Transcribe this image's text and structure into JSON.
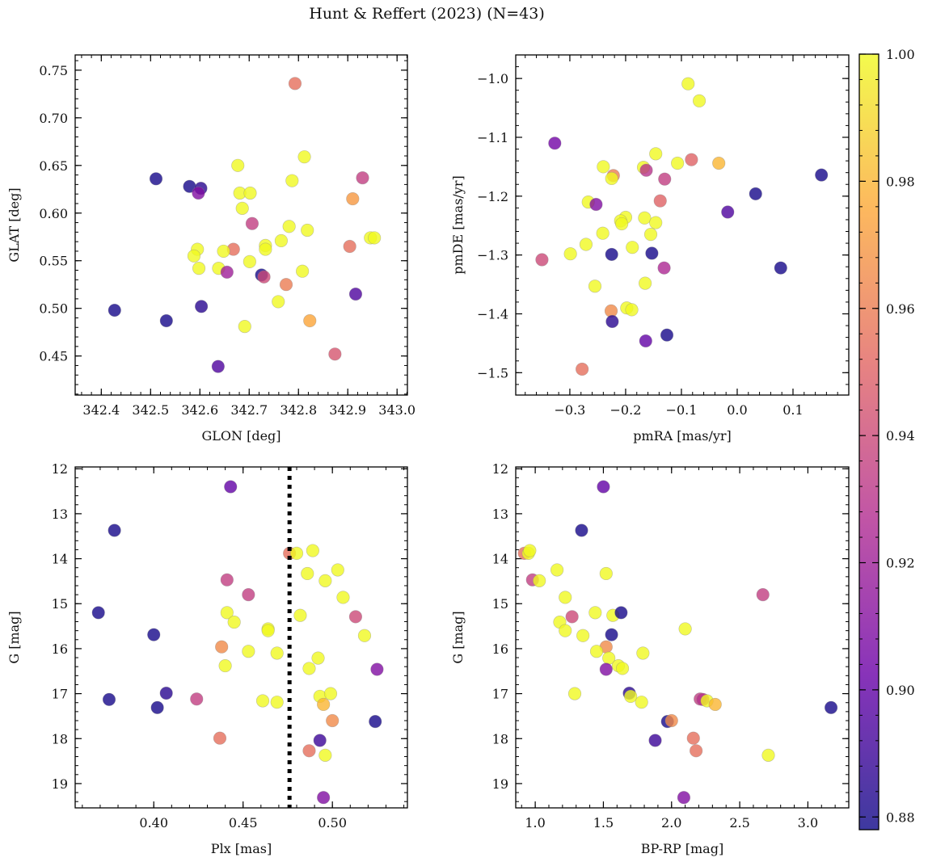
{
  "title": "Hunt & Reffert (2023) (N=43)",
  "chart_data": [
    {
      "type": "scatter",
      "xlabel": "GLON [deg]",
      "ylabel": "GLAT [deg]",
      "xlim": [
        342.347,
        343.021
      ],
      "ylim": [
        0.409,
        0.766
      ],
      "xticks": [
        342.4,
        342.5,
        342.6,
        342.7,
        342.8,
        342.9,
        343.0
      ],
      "xminor": 0.02,
      "xticklabels": [
        "342.4",
        "342.5",
        "342.6",
        "342.7",
        "342.8",
        "342.9",
        "343.0"
      ],
      "yticks": [
        0.45,
        0.5,
        0.55,
        0.6,
        0.65,
        0.7,
        0.75
      ],
      "yminor": 0.01,
      "yticklabels": [
        "0.45",
        "0.50",
        "0.55",
        "0.60",
        "0.65",
        "0.70",
        "0.75"
      ],
      "points": [
        [
          342.793,
          0.736,
          0.955
        ],
        [
          342.812,
          0.659,
          1.0
        ],
        [
          342.677,
          0.65,
          1.0
        ],
        [
          342.511,
          0.636,
          0.88
        ],
        [
          342.787,
          0.634,
          1.0
        ],
        [
          342.93,
          0.637,
          0.935
        ],
        [
          342.579,
          0.628,
          0.88
        ],
        [
          342.602,
          0.626,
          0.885
        ],
        [
          342.597,
          0.621,
          0.91
        ],
        [
          342.681,
          0.621,
          1.0
        ],
        [
          342.702,
          0.621,
          1.0
        ],
        [
          342.91,
          0.615,
          0.97
        ],
        [
          342.686,
          0.605,
          1.0
        ],
        [
          342.706,
          0.589,
          0.935
        ],
        [
          342.781,
          0.586,
          1.0
        ],
        [
          342.818,
          0.582,
          1.0
        ],
        [
          342.946,
          0.574,
          1.0
        ],
        [
          342.954,
          0.574,
          1.0
        ],
        [
          342.765,
          0.571,
          1.0
        ],
        [
          342.733,
          0.566,
          1.0
        ],
        [
          342.733,
          0.562,
          1.0
        ],
        [
          342.904,
          0.565,
          0.955
        ],
        [
          342.668,
          0.562,
          0.955
        ],
        [
          342.595,
          0.562,
          1.0
        ],
        [
          342.648,
          0.56,
          1.0
        ],
        [
          342.588,
          0.555,
          1.0
        ],
        [
          342.701,
          0.549,
          1.0
        ],
        [
          342.598,
          0.542,
          1.0
        ],
        [
          342.638,
          0.542,
          1.0
        ],
        [
          342.655,
          0.538,
          0.92
        ],
        [
          342.808,
          0.539,
          1.0
        ],
        [
          342.725,
          0.535,
          0.88
        ],
        [
          342.73,
          0.533,
          0.94
        ],
        [
          342.775,
          0.525,
          0.96
        ],
        [
          342.916,
          0.515,
          0.895
        ],
        [
          342.759,
          0.507,
          1.0
        ],
        [
          342.603,
          0.502,
          0.885
        ],
        [
          342.427,
          0.498,
          0.88
        ],
        [
          342.532,
          0.487,
          0.88
        ],
        [
          342.823,
          0.487,
          0.975
        ],
        [
          342.691,
          0.481,
          1.0
        ],
        [
          342.874,
          0.452,
          0.945
        ],
        [
          342.637,
          0.439,
          0.895
        ]
      ]
    },
    {
      "type": "scatter",
      "xlabel": "pmRA [mas/yr]",
      "ylabel": "pmDE [mas/yr]",
      "xlim": [
        -0.397,
        0.2
      ],
      "ylim": [
        -1.538,
        -0.96
      ],
      "xticks": [
        -0.3,
        -0.2,
        -0.1,
        0.0,
        0.1
      ],
      "xminor": 0.02,
      "xticklabels": [
        "−0.3",
        "−0.2",
        "−0.1",
        "0.0",
        "0.1"
      ],
      "yticks": [
        -1.5,
        -1.4,
        -1.3,
        -1.2,
        -1.1,
        -1.0
      ],
      "yminor": 0.02,
      "yticklabels": [
        "−1.5",
        "−1.4",
        "−1.3",
        "−1.2",
        "−1.1",
        "−1.0"
      ],
      "points": [
        [
          -0.088,
          -1.009,
          1.0
        ],
        [
          -0.068,
          -1.038,
          1.0
        ],
        [
          -0.327,
          -1.11,
          0.905
        ],
        [
          -0.146,
          -1.128,
          1.0
        ],
        [
          -0.082,
          -1.138,
          0.95
        ],
        [
          -0.033,
          -1.144,
          0.98
        ],
        [
          -0.107,
          -1.144,
          1.0
        ],
        [
          -0.24,
          -1.15,
          1.0
        ],
        [
          -0.168,
          -1.151,
          1.0
        ],
        [
          -0.163,
          -1.156,
          0.93
        ],
        [
          -0.222,
          -1.165,
          0.96
        ],
        [
          -0.225,
          -1.17,
          1.0
        ],
        [
          0.151,
          -1.164,
          0.88
        ],
        [
          -0.13,
          -1.171,
          0.935
        ],
        [
          0.033,
          -1.196,
          0.88
        ],
        [
          -0.138,
          -1.208,
          0.95
        ],
        [
          -0.267,
          -1.21,
          1.0
        ],
        [
          -0.253,
          -1.214,
          0.91
        ],
        [
          -0.017,
          -1.227,
          0.895
        ],
        [
          -0.2,
          -1.236,
          1.0
        ],
        [
          -0.166,
          -1.237,
          1.0
        ],
        [
          -0.209,
          -1.242,
          1.0
        ],
        [
          -0.146,
          -1.245,
          1.0
        ],
        [
          -0.207,
          -1.247,
          1.0
        ],
        [
          -0.241,
          -1.263,
          1.0
        ],
        [
          -0.155,
          -1.265,
          1.0
        ],
        [
          -0.271,
          -1.282,
          1.0
        ],
        [
          -0.188,
          -1.287,
          1.0
        ],
        [
          -0.299,
          -1.298,
          1.0
        ],
        [
          -0.225,
          -1.299,
          0.88
        ],
        [
          -0.153,
          -1.297,
          0.88
        ],
        [
          -0.35,
          -1.308,
          0.94
        ],
        [
          0.078,
          -1.322,
          0.88
        ],
        [
          -0.131,
          -1.322,
          0.925
        ],
        [
          -0.255,
          -1.353,
          1.0
        ],
        [
          -0.165,
          -1.348,
          1.0
        ],
        [
          -0.198,
          -1.39,
          1.0
        ],
        [
          -0.189,
          -1.393,
          1.0
        ],
        [
          -0.226,
          -1.395,
          0.965
        ],
        [
          -0.224,
          -1.413,
          0.885
        ],
        [
          -0.126,
          -1.436,
          0.88
        ],
        [
          -0.164,
          -1.446,
          0.9
        ],
        [
          -0.278,
          -1.494,
          0.955
        ]
      ]
    },
    {
      "type": "scatter",
      "xlabel": "Plx [mas]",
      "ylabel": "G [mag]",
      "xlim": [
        0.356,
        0.542
      ],
      "ylim": [
        19.54,
        11.96
      ],
      "xticks": [
        0.4,
        0.45,
        0.5
      ],
      "xminor": 0.01,
      "xticklabels": [
        "0.40",
        "0.45",
        "0.50"
      ],
      "yticks": [
        12,
        13,
        14,
        15,
        16,
        17,
        18,
        19
      ],
      "yminor": 0.2,
      "yticklabels": [
        "12",
        "13",
        "14",
        "15",
        "16",
        "17",
        "18",
        "19"
      ],
      "vline": 0.476,
      "points": [
        [
          0.443,
          12.4,
          0.9
        ],
        [
          0.378,
          13.37,
          0.88
        ],
        [
          0.476,
          13.88,
          0.955
        ],
        [
          0.48,
          13.88,
          1.0
        ],
        [
          0.489,
          13.82,
          1.0
        ],
        [
          0.486,
          14.33,
          1.0
        ],
        [
          0.503,
          14.25,
          1.0
        ],
        [
          0.496,
          14.49,
          1.0
        ],
        [
          0.441,
          14.47,
          0.935
        ],
        [
          0.453,
          14.8,
          0.935
        ],
        [
          0.506,
          14.86,
          1.0
        ],
        [
          0.369,
          15.2,
          0.88
        ],
        [
          0.441,
          15.2,
          1.0
        ],
        [
          0.482,
          15.26,
          1.0
        ],
        [
          0.513,
          15.29,
          0.94
        ],
        [
          0.445,
          15.41,
          1.0
        ],
        [
          0.464,
          15.56,
          1.0
        ],
        [
          0.464,
          15.6,
          1.0
        ],
        [
          0.518,
          15.71,
          1.0
        ],
        [
          0.4,
          15.69,
          0.88
        ],
        [
          0.438,
          15.96,
          0.965
        ],
        [
          0.453,
          16.06,
          1.0
        ],
        [
          0.469,
          16.1,
          1.0
        ],
        [
          0.44,
          16.38,
          1.0
        ],
        [
          0.492,
          16.21,
          1.0
        ],
        [
          0.487,
          16.44,
          1.0
        ],
        [
          0.525,
          16.46,
          0.91
        ],
        [
          0.407,
          16.99,
          0.885
        ],
        [
          0.375,
          17.13,
          0.88
        ],
        [
          0.424,
          17.12,
          0.935
        ],
        [
          0.461,
          17.16,
          1.0
        ],
        [
          0.469,
          17.19,
          1.0
        ],
        [
          0.493,
          17.06,
          1.0
        ],
        [
          0.499,
          17.0,
          1.0
        ],
        [
          0.495,
          17.24,
          0.98
        ],
        [
          0.402,
          17.31,
          0.88
        ],
        [
          0.5,
          17.6,
          0.965
        ],
        [
          0.524,
          17.62,
          0.88
        ],
        [
          0.437,
          17.99,
          0.955
        ],
        [
          0.493,
          18.04,
          0.89
        ],
        [
          0.487,
          18.27,
          0.955
        ],
        [
          0.496,
          18.37,
          1.0
        ],
        [
          0.495,
          19.31,
          0.91
        ]
      ]
    },
    {
      "type": "scatter",
      "xlabel": "BP-RP [mag]",
      "ylabel": "G [mag]",
      "xlim": [
        0.857,
        3.3
      ],
      "ylim": [
        19.54,
        11.96
      ],
      "xticks": [
        1.0,
        1.5,
        2.0,
        2.5,
        3.0
      ],
      "xminor": 0.1,
      "xticklabels": [
        "1.0",
        "1.5",
        "2.0",
        "2.5",
        "3.0"
      ],
      "yticks": [
        12,
        13,
        14,
        15,
        16,
        17,
        18,
        19
      ],
      "yminor": 0.2,
      "yticklabels": [
        "12",
        "13",
        "14",
        "15",
        "16",
        "17",
        "18",
        "19"
      ],
      "points": [
        [
          1.5,
          12.4,
          0.9
        ],
        [
          1.34,
          13.37,
          0.88
        ],
        [
          0.92,
          13.88,
          0.955
        ],
        [
          0.95,
          13.88,
          1.0
        ],
        [
          0.96,
          13.82,
          1.0
        ],
        [
          1.16,
          14.25,
          1.0
        ],
        [
          1.52,
          14.33,
          1.0
        ],
        [
          0.98,
          14.47,
          0.935
        ],
        [
          1.03,
          14.49,
          1.0
        ],
        [
          1.22,
          14.86,
          1.0
        ],
        [
          2.67,
          14.8,
          0.935
        ],
        [
          1.27,
          15.29,
          0.94
        ],
        [
          1.44,
          15.2,
          1.0
        ],
        [
          1.57,
          15.26,
          1.0
        ],
        [
          1.63,
          15.2,
          0.88
        ],
        [
          1.18,
          15.41,
          1.0
        ],
        [
          1.22,
          15.6,
          1.0
        ],
        [
          1.35,
          15.71,
          1.0
        ],
        [
          1.56,
          15.69,
          0.88
        ],
        [
          2.1,
          15.56,
          1.0
        ],
        [
          1.52,
          15.96,
          0.965
        ],
        [
          1.45,
          16.06,
          1.0
        ],
        [
          1.54,
          16.21,
          1.0
        ],
        [
          1.79,
          16.1,
          1.0
        ],
        [
          1.61,
          16.38,
          1.0
        ],
        [
          1.64,
          16.44,
          1.0
        ],
        [
          1.52,
          16.46,
          0.91
        ],
        [
          1.29,
          17.0,
          1.0
        ],
        [
          1.69,
          16.99,
          0.885
        ],
        [
          1.7,
          17.06,
          1.0
        ],
        [
          1.78,
          17.19,
          1.0
        ],
        [
          2.21,
          17.12,
          0.935
        ],
        [
          2.23,
          17.13,
          0.93
        ],
        [
          2.26,
          17.16,
          1.0
        ],
        [
          2.32,
          17.24,
          0.98
        ],
        [
          3.17,
          17.31,
          0.88
        ],
        [
          1.97,
          17.62,
          0.88
        ],
        [
          2.0,
          17.6,
          0.965
        ],
        [
          1.88,
          18.04,
          0.89
        ],
        [
          2.16,
          17.99,
          0.955
        ],
        [
          2.18,
          18.27,
          0.955
        ],
        [
          2.71,
          18.37,
          1.0
        ],
        [
          2.09,
          19.31,
          0.91
        ]
      ]
    }
  ],
  "colorbar": {
    "colormap": "plasma",
    "range": [
      0.878,
      1.0
    ],
    "ticks": [
      0.88,
      0.9,
      0.92,
      0.94,
      0.96,
      0.98,
      1.0
    ],
    "ticklabels": [
      "0.88",
      "0.90",
      "0.92",
      "0.94",
      "0.96",
      "0.98",
      "1.00"
    ],
    "stops": [
      "#0d0887",
      "#6a00a8",
      "#b12a90",
      "#e16462",
      "#fca636",
      "#f0f921"
    ]
  }
}
